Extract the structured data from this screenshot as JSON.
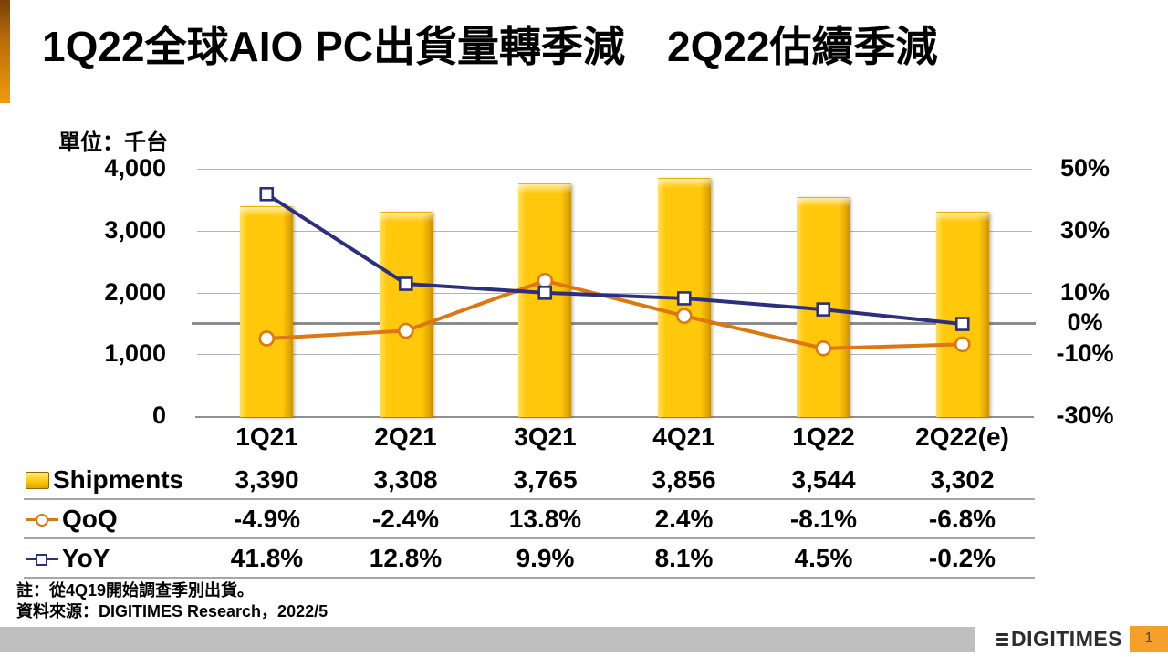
{
  "title": "1Q22全球AIO PC出貨量轉季減　2Q22估續季減",
  "unit_label": "單位：千台",
  "colors": {
    "bar_gold": "#ffc80a",
    "qoq_orange": "#dc7712",
    "yoy_navy": "#2b2f7e",
    "accent_orange": "#f29a0d",
    "grid_gray": "#b3b3b3",
    "zero_line_gray": "#8c8c8c",
    "footer_gray": "#bfbfbf",
    "page_badge_orange": "#f5a02b"
  },
  "chart_data": {
    "type": "bar+line combo",
    "title": "1Q22全球AIO PC出貨量轉季減　2Q22估續季減",
    "ylabel_left": "單位：千台",
    "categories": [
      "1Q21",
      "2Q21",
      "3Q21",
      "4Q21",
      "1Q22",
      "2Q22(e)"
    ],
    "series": [
      {
        "name": "Shipments",
        "type": "bar",
        "axis": "left",
        "color": "#ffc80a",
        "values": [
          3390,
          3308,
          3765,
          3856,
          3544,
          3302
        ]
      },
      {
        "name": "QoQ",
        "type": "line",
        "axis": "right",
        "color": "#dc7712",
        "marker": "circle",
        "values": [
          -4.9,
          -2.4,
          13.8,
          2.4,
          -8.1,
          -6.8
        ]
      },
      {
        "name": "YoY",
        "type": "line",
        "axis": "right",
        "color": "#2b2f7e",
        "marker": "square",
        "values": [
          41.8,
          12.8,
          9.9,
          8.1,
          4.5,
          -0.2
        ]
      }
    ],
    "left_axis": {
      "min": 0,
      "max": 4000,
      "ticks": [
        {
          "label": "4,000",
          "value": 4000
        },
        {
          "label": "3,000",
          "value": 3000
        },
        {
          "label": "2,000",
          "value": 2000
        },
        {
          "label": "1,000",
          "value": 1000
        },
        {
          "label": "0",
          "value": 0
        }
      ]
    },
    "right_axis": {
      "min": -30,
      "max": 50,
      "ticks": [
        {
          "label": "50%",
          "value": 50
        },
        {
          "label": "30%",
          "value": 30
        },
        {
          "label": "10%",
          "value": 10
        },
        {
          "label": "0%",
          "value": 0
        },
        {
          "label": "-10%",
          "value": -10
        },
        {
          "label": "-30%",
          "value": -30
        }
      ]
    },
    "grid": "horizontal only, zero-percent line emphasized",
    "legend_position": "table rows below chart"
  },
  "table": {
    "headers": [
      "1Q21",
      "2Q21",
      "3Q21",
      "4Q21",
      "1Q22",
      "2Q22(e)"
    ],
    "rows": [
      {
        "label": "Shipments",
        "values": [
          "3,390",
          "3,308",
          "3,765",
          "3,856",
          "3,544",
          "3,302"
        ]
      },
      {
        "label": "QoQ",
        "values": [
          "-4.9%",
          "-2.4%",
          "13.8%",
          "2.4%",
          "-8.1%",
          "-6.8%"
        ]
      },
      {
        "label": "YoY",
        "values": [
          "41.8%",
          "12.8%",
          "9.9%",
          "8.1%",
          "4.5%",
          "-0.2%"
        ]
      }
    ]
  },
  "footnotes": [
    "註：從4Q19開始調查季別出貨。",
    "資料來源：DIGITIMES Research，2022/5"
  ],
  "footer": {
    "logo_text": "DIGITIMES",
    "page_number": "1"
  }
}
